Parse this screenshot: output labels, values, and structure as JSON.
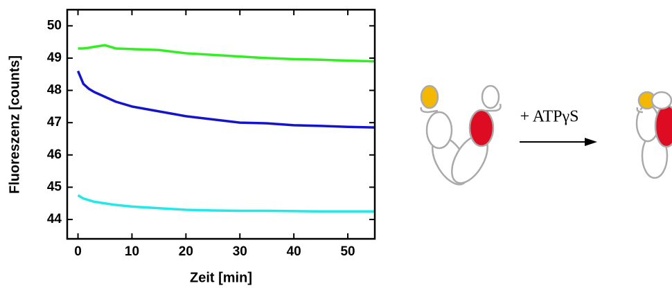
{
  "chart_data": {
    "type": "line",
    "xlabel": "Zeit [min]",
    "ylabel": "Fluoreszenz [counts]",
    "x": [
      0,
      1,
      2,
      3,
      5,
      7,
      10,
      15,
      20,
      25,
      30,
      35,
      40,
      45,
      50,
      55
    ],
    "series": [
      {
        "color": "#33ee22",
        "values": [
          49.3,
          49.3,
          49.32,
          49.35,
          49.4,
          49.3,
          49.28,
          49.25,
          49.15,
          49.1,
          49.05,
          49.0,
          48.97,
          48.95,
          48.92,
          48.9
        ]
      },
      {
        "color": "#1414cc",
        "values": [
          48.6,
          48.2,
          48.05,
          47.95,
          47.8,
          47.65,
          47.5,
          47.35,
          47.2,
          47.1,
          47.0,
          46.98,
          46.92,
          46.9,
          46.87,
          46.85
        ]
      },
      {
        "color": "#22e8e8",
        "values": [
          44.75,
          44.65,
          44.6,
          44.55,
          44.5,
          44.45,
          44.4,
          44.35,
          44.3,
          44.28,
          44.27,
          44.27,
          44.26,
          44.25,
          44.25,
          44.25
        ]
      }
    ],
    "xlim": [
      -2,
      55
    ],
    "xticks": [
      0,
      10,
      20,
      30,
      40,
      50
    ],
    "ylim": [
      43.4,
      50.5
    ],
    "yticks": [
      44,
      45,
      46,
      47,
      48,
      49,
      50
    ]
  },
  "diagram": {
    "arrow_label": "+ ATPγS"
  }
}
